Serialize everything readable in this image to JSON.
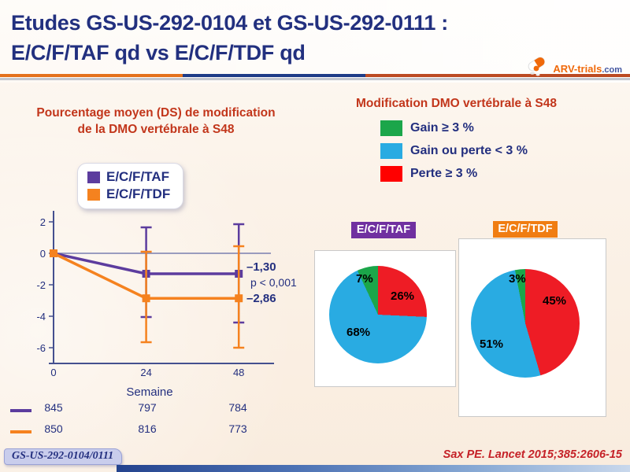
{
  "slide": {
    "title_line1": "Etudes GS-US-292-0104 et GS-US-292-0111 :",
    "title_line2": "E/C/F/TAF qd vs E/C/F/TDF qd",
    "logo": {
      "text": "ARV-trials",
      "suffix": ".com"
    },
    "footer_badge": "GS-US-292-0104/0111",
    "citation": "Sax PE. Lancet 2015;385:2606-15"
  },
  "colors": {
    "title_navy": "#22307F",
    "heading_red": "#C2361B",
    "taf_purple": "#5C3C9E",
    "tdf_orange": "#F5821F",
    "pie_green": "#1BA64A",
    "pie_blue": "#29ABE2",
    "pie_red": "#EE1C25"
  },
  "left_panel": {
    "title_line1": "Pourcentage moyen (DS) de modification",
    "title_line2": "de la DMO vertébrale à S48",
    "legend": [
      {
        "label": "E/C/F/TAF",
        "color": "#5C3C9E"
      },
      {
        "label": "E/C/F/TDF",
        "color": "#F5821F"
      }
    ]
  },
  "right_panel": {
    "title": "Modification DMO vertébrale à S48",
    "legend": [
      {
        "label": "Gain ≥ 3 %",
        "color": "#1BA64A"
      },
      {
        "label": "Gain ou perte < 3 %",
        "color": "#29ABE2"
      },
      {
        "label": "Perte ≥ 3 %",
        "color": "#FF0000"
      }
    ],
    "pies": [
      {
        "header": "E/C/F/TAF",
        "header_color": "#7030A0"
      },
      {
        "header": "E/C/F/TDF",
        "header_color": "#F07D12"
      }
    ]
  },
  "chart_data": [
    {
      "type": "line",
      "title": "Pourcentage moyen (DS) de modification de la DMO vertébrale à S48",
      "xlabel": "Semaine",
      "ylabel": "",
      "x": [
        0,
        24,
        48
      ],
      "xlim": [
        0,
        48
      ],
      "ylim": [
        -6,
        2
      ],
      "yticks": [
        2,
        0,
        -2,
        -4,
        -6
      ],
      "grid": false,
      "legend_position": "top-left",
      "annotation": "p < 0,001",
      "series": [
        {
          "name": "E/C/F/TAF",
          "color": "#5C3C9E",
          "values": [
            0,
            -1.3,
            -1.3
          ],
          "error_low": [
            0,
            -4.05,
            -4.4
          ],
          "error_high": [
            0,
            1.65,
            1.85
          ],
          "end_label": "–1,30",
          "n_by_visit": [
            "845",
            "797",
            "784"
          ]
        },
        {
          "name": "E/C/F/TDF",
          "color": "#F5821F",
          "values": [
            0,
            -2.86,
            -2.86
          ],
          "error_low": [
            0,
            -5.65,
            -6.0
          ],
          "error_high": [
            0,
            0.1,
            0.45
          ],
          "end_label": "–2,86",
          "n_by_visit": [
            "850",
            "816",
            "773"
          ]
        }
      ]
    },
    {
      "type": "pie",
      "title": "E/C/F/TAF",
      "slices": [
        {
          "label": "Perte ≥ 3 %",
          "value": 26,
          "text": "26%",
          "color": "#EE1C25"
        },
        {
          "label": "Gain ou perte < 3 %",
          "value": 68,
          "text": "68%",
          "color": "#29ABE2"
        },
        {
          "label": "Gain ≥ 3 %",
          "value": 7,
          "text": "7%",
          "color": "#1BA64A"
        }
      ]
    },
    {
      "type": "pie",
      "title": "E/C/F/TDF",
      "slices": [
        {
          "label": "Perte ≥ 3 %",
          "value": 45,
          "text": "45%",
          "color": "#EE1C25"
        },
        {
          "label": "Gain ou perte < 3 %",
          "value": 51,
          "text": "51%",
          "color": "#29ABE2"
        },
        {
          "label": "Gain ≥ 3 %",
          "value": 3,
          "text": "3%",
          "color": "#1BA64A"
        }
      ]
    }
  ]
}
